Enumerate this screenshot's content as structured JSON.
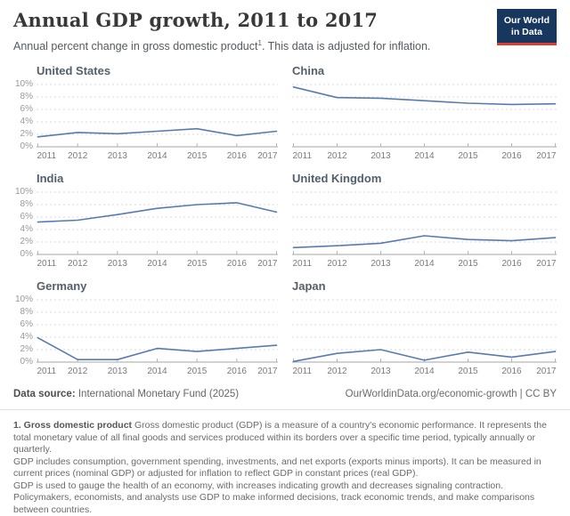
{
  "header": {
    "title": "Annual GDP growth, 2011 to 2017",
    "subtitle_pre": "Annual percent change in gross domestic product",
    "subtitle_sup": "1",
    "subtitle_post": ". This data is adjusted for inflation.",
    "logo_line1": "Our World",
    "logo_line2": "in Data"
  },
  "chart_data": {
    "type": "line",
    "x": [
      2011,
      2012,
      2013,
      2014,
      2015,
      2016,
      2017
    ],
    "ylim": [
      0,
      10
    ],
    "yticks": [
      "0%",
      "2%",
      "4%",
      "6%",
      "8%",
      "10%"
    ],
    "grid": true,
    "legend_position": "none",
    "line_color": "#587ab4",
    "grid_color": "#d9d9d9",
    "axis_color": "#a5a5a5",
    "series": [
      {
        "name": "United States",
        "values": [
          1.6,
          2.3,
          2.1,
          2.5,
          2.9,
          1.8,
          2.5
        ]
      },
      {
        "name": "China",
        "values": [
          9.6,
          7.9,
          7.8,
          7.4,
          7.0,
          6.8,
          6.9
        ]
      },
      {
        "name": "India",
        "values": [
          5.2,
          5.5,
          6.4,
          7.4,
          8.0,
          8.3,
          6.8
        ]
      },
      {
        "name": "United Kingdom",
        "values": [
          1.1,
          1.4,
          1.8,
          3.0,
          2.4,
          2.2,
          2.7
        ]
      },
      {
        "name": "Germany",
        "values": [
          3.9,
          0.4,
          0.4,
          2.2,
          1.7,
          2.2,
          2.7
        ]
      },
      {
        "name": "Japan",
        "values": [
          0.1,
          1.4,
          2.0,
          0.3,
          1.6,
          0.8,
          1.7
        ]
      }
    ]
  },
  "footer": {
    "source_label": "Data source:",
    "source_value": " International Monetary Fund (2025)",
    "link": "OurWorldinData.org/economic-growth | CC BY"
  },
  "footnote": {
    "bold": "1. Gross domestic product",
    "line1": " Gross domestic product (GDP) is a measure of a country's economic performance. It represents the total monetary value of all final goods and services produced within its borders over a specific time period, typically annually or quarterly.",
    "line2": "GDP includes consumption, government spending, investments, and net exports (exports minus imports). It can be measured in current prices (nominal GDP) or adjusted for inflation to reflect GDP in constant prices (real GDP).",
    "line3": "GDP is used to gauge the health of an economy, with increases indicating growth and decreases signaling contraction. Policymakers, economists, and analysts use GDP to make informed decisions, track economic trends, and make comparisons between countries."
  }
}
